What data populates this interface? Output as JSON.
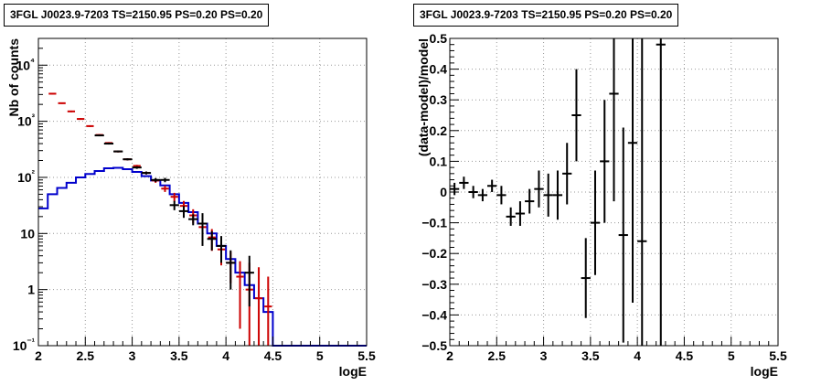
{
  "chart_data": [
    {
      "type": "histogram",
      "title": "3FGL J0023.9-7203 TS=2150.95 PS=0.20 PS=0.20",
      "xlabel": "logE",
      "ylabel": "Nb of counts",
      "xlim": [
        2,
        5.5
      ],
      "ylim": [
        0.1,
        30000
      ],
      "yscale": "log",
      "grid": true,
      "x_ticks": [
        "2",
        "2.5",
        "3",
        "3.5",
        "4",
        "4.5",
        "5",
        "5.5"
      ],
      "y_ticks": [
        "10⁻¹",
        "1",
        "10",
        "10²",
        "10³",
        "10⁴"
      ],
      "series": [
        {
          "color": "#cc0000",
          "style": "horizontal bars with vertical error bars",
          "x": [
            2.15,
            2.25,
            2.35,
            2.45,
            2.55,
            2.65,
            2.75,
            2.85,
            2.95,
            3.05,
            3.15,
            3.25,
            3.35,
            3.45,
            3.55,
            3.65,
            3.75,
            3.85,
            3.95,
            4.05,
            4.15,
            4.25,
            4.35,
            4.45
          ],
          "values": [
            3100,
            2100,
            1500,
            1100,
            820,
            570,
            410,
            290,
            210,
            160,
            120,
            88,
            63,
            45,
            31,
            21,
            13,
            8.5,
            5.2,
            3.0,
            1.7,
            1.0,
            0.7,
            0.5
          ],
          "err_low": [
            3000,
            2040,
            1450,
            1060,
            790,
            550,
            395,
            279,
            201,
            153,
            113,
            80,
            55,
            37,
            24,
            15,
            8.4,
            4.9,
            2.7,
            1.3,
            0.2,
            0.1,
            0.1,
            0.1
          ],
          "err_high": [
            3200,
            2160,
            1550,
            1140,
            850,
            590,
            425,
            301,
            219,
            167,
            127,
            96,
            71,
            53,
            38,
            27,
            18,
            12,
            7.7,
            4.7,
            3.2,
            3.0,
            2.5,
            1.7
          ]
        },
        {
          "color": "#000000",
          "style": "data points with error bars",
          "x": [
            2.65,
            2.75,
            2.85,
            2.95,
            3.05,
            3.15,
            3.25,
            3.35,
            3.45,
            3.55,
            3.65,
            3.75,
            3.85,
            3.95,
            4.05,
            4.25
          ],
          "values": [
            560,
            400,
            290,
            210,
            150,
            120,
            90,
            90,
            32,
            25,
            18,
            15,
            8,
            6,
            3,
            2
          ],
          "err_low": [
            540,
            385,
            279,
            201,
            142,
            113,
            83,
            82,
            26,
            19,
            14,
            6,
            5,
            3,
            1,
            0.5
          ],
          "err_high": [
            580,
            415,
            301,
            219,
            158,
            127,
            97,
            98,
            38,
            31,
            22,
            23,
            11,
            9,
            5,
            4
          ]
        },
        {
          "color": "#0000cc",
          "style": "step histogram",
          "edges": [
            2.0,
            2.1,
            2.2,
            2.3,
            2.4,
            2.5,
            2.6,
            2.7,
            2.8,
            2.9,
            3.0,
            3.1,
            3.2,
            3.3,
            3.4,
            3.5,
            3.6,
            3.7,
            3.8,
            3.9,
            4.0,
            4.1,
            4.2,
            4.3,
            4.4,
            4.5,
            5.5
          ],
          "values": [
            28,
            50,
            65,
            80,
            100,
            115,
            130,
            145,
            148,
            140,
            125,
            105,
            88,
            72,
            50,
            35,
            24,
            15,
            10,
            6,
            3.5,
            2.0,
            1.2,
            0.7,
            0.4,
            0.1
          ]
        }
      ]
    },
    {
      "type": "scatter",
      "title": "3FGL J0023.9-7203 TS=2150.95 PS=0.20 PS=0.20",
      "xlabel": "logE",
      "ylabel": "(data-model)/model",
      "xlim": [
        2,
        5.5
      ],
      "ylim": [
        -0.5,
        0.5
      ],
      "grid": true,
      "x_ticks": [
        "2",
        "2.5",
        "3",
        "3.5",
        "4",
        "4.5",
        "5",
        "5.5"
      ],
      "y_ticks": [
        "−0.5",
        "−0.4",
        "−0.3",
        "−0.2",
        "−0.1",
        "0",
        "0.1",
        "0.2",
        "0.3",
        "0.4",
        "0.5"
      ],
      "series": [
        {
          "color": "#000000",
          "style": "points with error bars",
          "x": [
            2.05,
            2.15,
            2.25,
            2.35,
            2.45,
            2.55,
            2.65,
            2.75,
            2.85,
            2.95,
            3.05,
            3.15,
            3.25,
            3.35,
            3.45,
            3.55,
            3.65,
            3.75,
            3.85,
            3.95,
            4.05,
            4.25
          ],
          "values": [
            0.01,
            0.03,
            0.0,
            -0.01,
            0.02,
            -0.01,
            -0.08,
            -0.07,
            -0.03,
            0.01,
            -0.01,
            -0.01,
            0.06,
            0.25,
            -0.28,
            -0.1,
            0.1,
            0.32,
            -0.14,
            0.16,
            -0.16,
            0.48
          ],
          "err": [
            0.02,
            0.02,
            0.02,
            0.02,
            0.02,
            0.03,
            0.03,
            0.04,
            0.04,
            0.06,
            0.07,
            0.08,
            0.1,
            0.15,
            0.13,
            0.17,
            0.2,
            0.35,
            0.35,
            0.52,
            0.66,
            1.0
          ]
        }
      ]
    }
  ]
}
